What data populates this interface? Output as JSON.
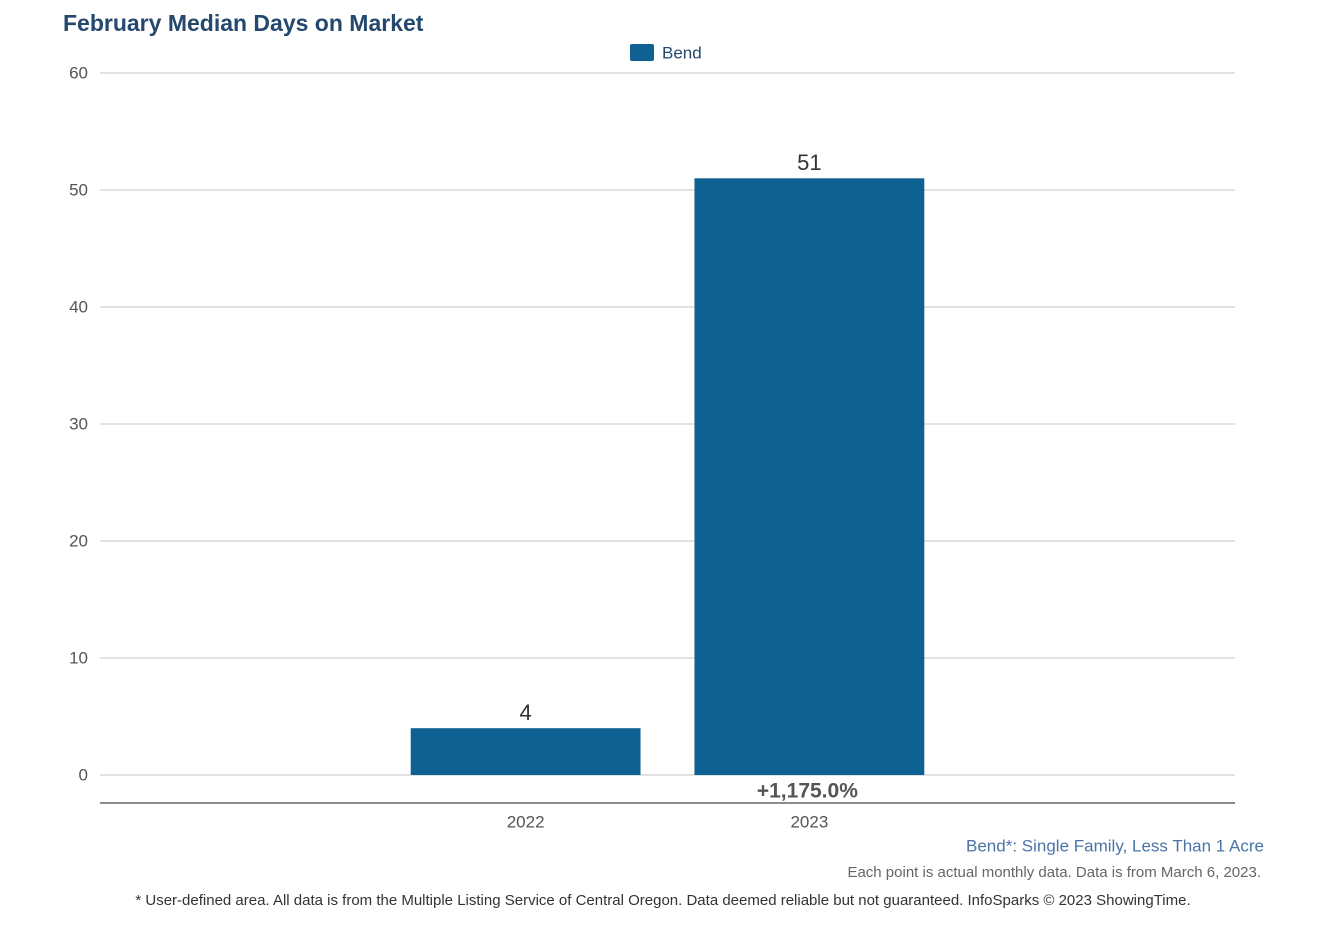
{
  "chart_data": {
    "type": "bar",
    "title": "February Median Days on Market",
    "categories": [
      null,
      "2022",
      "2023",
      null
    ],
    "series": [
      {
        "name": "Bend",
        "color": "#106193",
        "values": [
          null,
          4,
          51,
          null
        ]
      }
    ],
    "change_label": "+1,175.0%",
    "ylim": [
      0,
      60
    ],
    "yticks": [
      0,
      10,
      20,
      30,
      40,
      50,
      60
    ],
    "grid": true,
    "legend": "top",
    "area_note": "Bend*: Single Family, Less Than 1 Acre",
    "data_note": "Each point is actual monthly data. Data is from March 6, 2023.",
    "footnote": "* User-defined area. All data is from the Multiple Listing Service of Central Oregon. Data deemed reliable but not guaranteed. InfoSparks © 2023 ShowingTime."
  }
}
